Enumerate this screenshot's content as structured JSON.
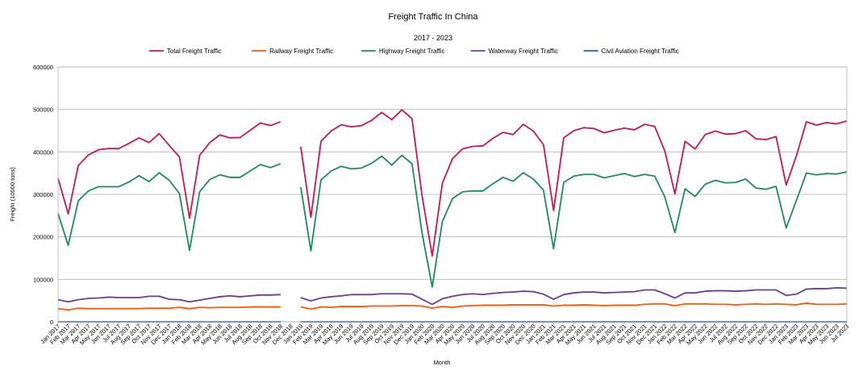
{
  "chart_data": {
    "type": "line",
    "title": "Freight Traffic In China",
    "subtitle": "2017 - 2023",
    "xlabel": "Month",
    "ylabel": "Freight (10000 tons)",
    "ylim": [
      0,
      600000
    ],
    "yticks": [
      0,
      100000,
      200000,
      300000,
      400000,
      500000,
      600000
    ],
    "grid": true,
    "legend_position": "top",
    "categories": [
      "Jan 2017",
      "Feb 2017",
      "Mar 2017",
      "Apr 2017",
      "May 2017",
      "Jun 2017",
      "Jul 2017",
      "Aug 2017",
      "Sep 2017",
      "Oct 2017",
      "Nov 2017",
      "Dec 2017",
      "Jan 2018",
      "Feb 2018",
      "Mar 2018",
      "Apr 2018",
      "May 2018",
      "Jun 2018",
      "Jul 2018",
      "Aug 2018",
      "Sep 2018",
      "Oct 2018",
      "Nov 2018",
      "Dec 2018",
      "Jan 2019",
      "Feb 2019",
      "Mar 2019",
      "Apr 2019",
      "May 2019",
      "Jun 2019",
      "Jul 2019",
      "Aug 2019",
      "Sep 2019",
      "Oct 2019",
      "Nov 2019",
      "Dec 2019",
      "Jan 2020",
      "Feb 2020",
      "Mar 2020",
      "Apr 2020",
      "May 2020",
      "Jun 2020",
      "Jul 2020",
      "Aug 2020",
      "Sep 2020",
      "Oct 2020",
      "Nov 2020",
      "Dec 2020",
      "Jan 2021",
      "Feb 2021",
      "Mar 2021",
      "Apr 2021",
      "May 2021",
      "Jun 2021",
      "Jul 2021",
      "Aug 2021",
      "Sep 2021",
      "Oct 2021",
      "Nov 2021",
      "Dec 2021",
      "Jan 2022",
      "Feb 2022",
      "Mar 2022",
      "Apr 2022",
      "May 2022",
      "Jun 2022",
      "Jul 2022",
      "Aug 2022",
      "Sep 2022",
      "Oct 2022",
      "Nov 2022",
      "Dec 2022",
      "Jan 2023",
      "Feb 2023",
      "Mar 2023",
      "Apr 2023",
      "May 2023",
      "Jun 2023",
      "Jul 2023"
    ],
    "tick_labels": [
      "Jan 2017",
      "Feb 2017",
      "Mar 2017",
      "Apr 2017",
      "May 2017",
      "Jun 2017",
      "Jul 2017",
      "Aug 2017",
      "Sep 2017",
      "Oct 2017",
      "Nov 2017",
      "Dec 2017",
      "Jan 2018",
      "Feb 2018",
      "Mar 2018",
      "Apr 2018",
      "May 2018",
      "Jun 2018",
      "Jul 2018",
      "Aug 2018",
      "Sep 2018",
      "Oct 2018",
      "Nov 2018",
      "Dec 2018",
      "Jan 2019",
      "Feb 2019",
      "Mar 2019",
      "Apr 2019",
      "May 2019",
      "Jun 2019",
      "Jul 2019",
      "Aug 2019",
      "Sep 2019",
      "Oct 2019",
      "Nov 2019",
      "Dec 2019",
      "Jan 2020",
      "Feb 2020",
      "Mar 2020",
      "Apr 2020",
      "May 2020",
      "Jun 2020",
      "Jul 2020",
      "Aug 2020",
      "Sep 2020",
      "Oct 2020",
      "Nov 2020",
      "Dec 2020",
      "Jan 2021",
      "Feb 2021",
      "Mar 2021",
      "Apr 2021",
      "May 2021",
      "Jun 2021",
      "Jul 2021",
      "Aug 2021",
      "Sep 2021",
      "Oct 2021",
      "Nov 2021",
      "Dec 2021",
      "Jan 2022",
      "Feb 2022",
      "Mar 2022",
      "Apr 2022",
      "May 2022",
      "Jun 2022",
      "Jul 2022",
      "Aug 2022",
      "Sep 2022",
      "Oct 2022",
      "Nov 2022",
      "Dec 2022",
      "Jan 2023",
      "Feb 2023",
      "Mar 2023",
      "Apr 2023",
      "May 2023",
      "Jun 2023",
      "Jul 2023"
    ],
    "series": [
      {
        "name": "Total Freight Traffic",
        "color": "#c9174f",
        "values": [
          338000,
          254000,
          368000,
          393000,
          405000,
          408000,
          408000,
          420000,
          433000,
          422000,
          443000,
          415000,
          388000,
          244000,
          392000,
          422000,
          440000,
          433000,
          434000,
          451000,
          468000,
          462000,
          471000,
          null,
          412000,
          246000,
          425000,
          449000,
          464000,
          459000,
          462000,
          474000,
          493000,
          476000,
          499000,
          478000,
          296000,
          155000,
          326000,
          384000,
          407000,
          413000,
          414000,
          432000,
          446000,
          441000,
          465000,
          449000,
          417000,
          262000,
          433000,
          450000,
          457000,
          455000,
          445000,
          451000,
          456000,
          452000,
          465000,
          460000,
          402000,
          301000,
          425000,
          407000,
          441000,
          449000,
          442000,
          443000,
          450000,
          431000,
          429000,
          436000,
          322000,
          390000,
          471000,
          463000,
          469000,
          466000,
          473000
        ]
      },
      {
        "name": "Railway Freight Traffic",
        "color": "#ff5a00",
        "values": [
          31000,
          28000,
          32000,
          31000,
          31000,
          31000,
          31000,
          31000,
          31000,
          32000,
          32000,
          32000,
          34000,
          31000,
          34000,
          33000,
          34000,
          34000,
          34000,
          35000,
          35000,
          35000,
          35000,
          null,
          35000,
          30000,
          35000,
          34000,
          36000,
          36000,
          36000,
          37000,
          37000,
          37000,
          38000,
          38000,
          37000,
          32000,
          36000,
          34000,
          37000,
          38000,
          39000,
          39000,
          39000,
          40000,
          40000,
          40000,
          40000,
          37000,
          39000,
          39000,
          40000,
          39000,
          38000,
          39000,
          39000,
          39000,
          41000,
          42000,
          42000,
          38000,
          42000,
          42000,
          42000,
          41000,
          41000,
          40000,
          41000,
          42000,
          41000,
          42000,
          41000,
          40000,
          44000,
          41000,
          41000,
          41000,
          42000
        ]
      },
      {
        "name": "Highway Freight Traffic",
        "color": "#1d8c5b",
        "values": [
          255000,
          180000,
          285000,
          308000,
          318000,
          318000,
          318000,
          329000,
          344000,
          330000,
          351000,
          333000,
          302000,
          168000,
          306000,
          335000,
          346000,
          340000,
          340000,
          355000,
          370000,
          363000,
          372000,
          null,
          317000,
          167000,
          334000,
          355000,
          366000,
          360000,
          362000,
          373000,
          390000,
          369000,
          392000,
          372000,
          208000,
          82000,
          236000,
          290000,
          306000,
          308000,
          308000,
          325000,
          340000,
          331000,
          351000,
          336000,
          310000,
          172000,
          328000,
          343000,
          347000,
          347000,
          339000,
          344000,
          349000,
          342000,
          347000,
          343000,
          294000,
          210000,
          313000,
          295000,
          324000,
          333000,
          327000,
          328000,
          336000,
          315000,
          312000,
          319000,
          221000,
          285000,
          350000,
          346000,
          349000,
          348000,
          353000
        ]
      },
      {
        "name": "Waterway Freight Traffic",
        "color": "#6a3d9a",
        "values": [
          52000,
          47000,
          52000,
          55000,
          56000,
          58000,
          57000,
          57000,
          57000,
          60000,
          60000,
          53000,
          52000,
          47000,
          51000,
          55000,
          59000,
          61000,
          59000,
          61000,
          63000,
          63000,
          64000,
          null,
          57000,
          49000,
          56000,
          59000,
          61000,
          64000,
          64000,
          64000,
          66000,
          66000,
          66000,
          65000,
          53000,
          41000,
          54000,
          60000,
          64000,
          66000,
          64000,
          67000,
          69000,
          70000,
          72000,
          71000,
          65000,
          53000,
          64000,
          68000,
          70000,
          70000,
          68000,
          69000,
          70000,
          71000,
          75000,
          75000,
          66000,
          56000,
          68000,
          68000,
          72000,
          73000,
          73000,
          72000,
          73000,
          75000,
          75000,
          75000,
          62000,
          65000,
          77000,
          78000,
          78000,
          80000,
          79000
        ]
      },
      {
        "name": "Civil Aviation Freight Traffic",
        "color": "#2e5fa8",
        "values": [
          60,
          50,
          60,
          60,
          60,
          60,
          60,
          60,
          60,
          60,
          60,
          60,
          60,
          50,
          60,
          60,
          60,
          60,
          60,
          60,
          60,
          60,
          60,
          null,
          60,
          50,
          60,
          60,
          60,
          60,
          60,
          60,
          60,
          60,
          60,
          60,
          50,
          30,
          40,
          50,
          60,
          60,
          60,
          60,
          60,
          60,
          60,
          60,
          60,
          50,
          60,
          60,
          60,
          60,
          60,
          60,
          60,
          60,
          60,
          60,
          60,
          50,
          50,
          50,
          50,
          50,
          50,
          50,
          50,
          50,
          50,
          50,
          40,
          50,
          60,
          60,
          60,
          60,
          60
        ]
      }
    ]
  }
}
